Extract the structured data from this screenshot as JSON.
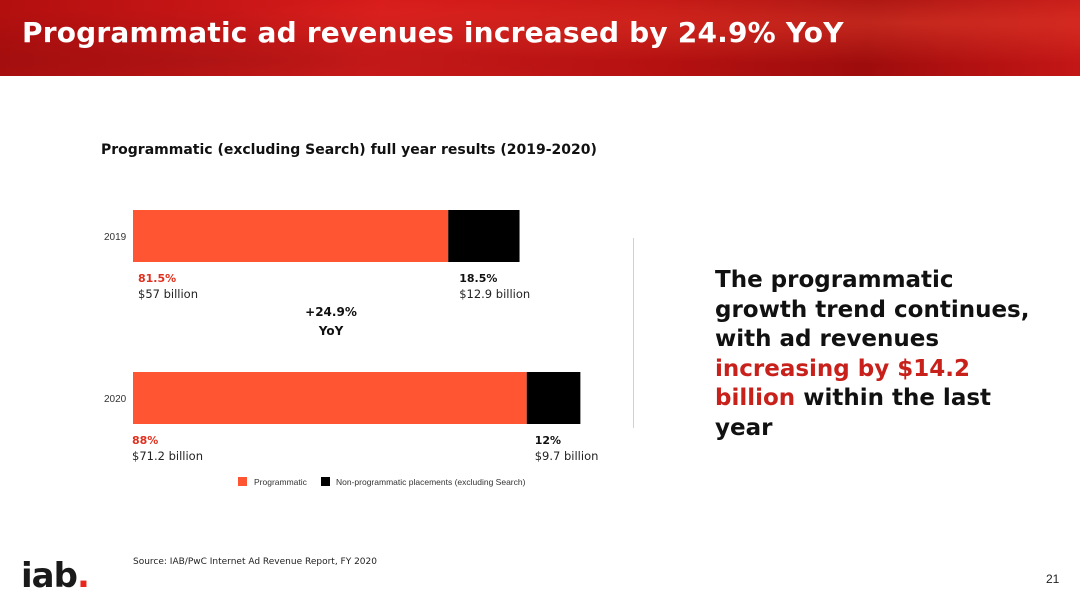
{
  "header": {
    "title": "Programmatic ad revenues increased by 24.9% YoY"
  },
  "chart_data": {
    "type": "bar",
    "orientation": "horizontal",
    "stacked": true,
    "title": "Programmatic (excluding Search) full year results (2019-2020)",
    "categories": [
      "2019",
      "2020"
    ],
    "units": "billion USD",
    "series": [
      {
        "name": "Programmatic",
        "color": "#ff5533",
        "values": [
          57,
          71.2
        ],
        "percent_labels": [
          "81.5%",
          "88%"
        ],
        "value_labels": [
          "$57 billion",
          "$71.2 billion"
        ]
      },
      {
        "name": "Non-programmatic placements (excluding Search)",
        "color": "#000000",
        "values": [
          12.9,
          9.7
        ],
        "percent_labels": [
          "18.5%",
          "12%"
        ],
        "value_labels": [
          "$12.9 billion",
          "$9.7 billion"
        ]
      }
    ],
    "annotation": {
      "line1": "+24.9%",
      "line2": "YoY"
    },
    "legend_position": "bottom",
    "grid": false
  },
  "side_text": {
    "part1": "The programmatic growth trend continues, with ad revenues ",
    "highlight": "increasing by $14.2 billion",
    "part2": " within the last year",
    "highlight_color": "#c8201a"
  },
  "source": "Source: IAB/PwC Internet Ad Revenue Report, FY 2020",
  "page_number": "21",
  "logo": {
    "text": "iab",
    "dot": "."
  }
}
